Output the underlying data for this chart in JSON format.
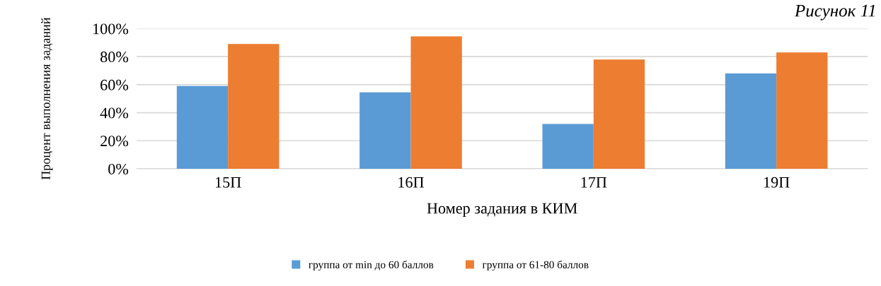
{
  "chart_data": {
    "type": "bar",
    "xlabel": "Номер задания в КИМ",
    "ylabel": "Процент выполнения заданий",
    "categories": [
      "15П",
      "16П",
      "17П",
      "19П"
    ],
    "series": [
      {
        "name": "группа от min до 60 баллов",
        "color": "#5b9bd5",
        "values": [
          59,
          54.5,
          32,
          68
        ]
      },
      {
        "name": "группа от 61-80 баллов",
        "color": "#ed7d31",
        "values": [
          89,
          94.5,
          78,
          83
        ]
      }
    ],
    "ylim": [
      0,
      100
    ],
    "yticks": [
      {
        "value": 0,
        "label": "0%"
      },
      {
        "value": 20,
        "label": "20%"
      },
      {
        "value": 40,
        "label": "40%"
      },
      {
        "value": 60,
        "label": "60%"
      },
      {
        "value": 80,
        "label": "80%"
      },
      {
        "value": 100,
        "label": "100%"
      }
    ],
    "grid": "y",
    "legend": "bottom",
    "annotations": [
      "Рисунок 11"
    ]
  }
}
